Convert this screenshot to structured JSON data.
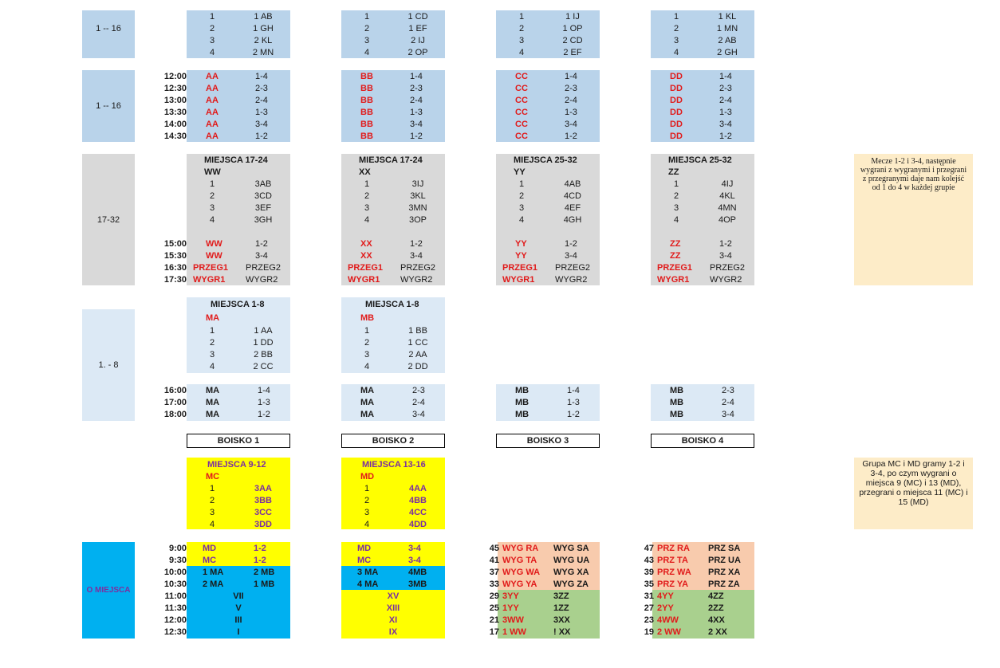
{
  "colors": {
    "blue": "#b9d3ea",
    "gray": "#d9d9d9",
    "lightblue": "#dce9f5",
    "yellow": "#ffff00",
    "cyan": "#00b0f0",
    "salmon": "#f8cbad",
    "green": "#a9d08e",
    "note": "#fdecc8",
    "red": "#e11b1b"
  },
  "sections": {
    "s1_label": "1 -- 16",
    "s2_label": "1 -- 16",
    "s3_label": "17-32",
    "s4_label": "1. -  8",
    "s5_label": "O MIEJSCA"
  },
  "groups1": [
    {
      "rows": [
        [
          "1",
          "1 AB"
        ],
        [
          "2",
          "1 GH"
        ],
        [
          "3",
          "2 KL"
        ],
        [
          "4",
          "2 MN"
        ]
      ]
    },
    {
      "rows": [
        [
          "1",
          "1 CD"
        ],
        [
          "2",
          "1 EF"
        ],
        [
          "3",
          "2 IJ"
        ],
        [
          "4",
          "2 OP"
        ]
      ]
    },
    {
      "rows": [
        [
          "1",
          "1 IJ"
        ],
        [
          "2",
          "1 OP"
        ],
        [
          "3",
          "2 CD"
        ],
        [
          "4",
          "2 EF"
        ]
      ]
    },
    {
      "rows": [
        [
          "1",
          "1 KL"
        ],
        [
          "2",
          "1 MN"
        ],
        [
          "3",
          "2 AB"
        ],
        [
          "4",
          "2 GH"
        ]
      ]
    }
  ],
  "times2": [
    "12:00",
    "12:30",
    "13:00",
    "13:30",
    "14:00",
    "14:30"
  ],
  "games2": [
    {
      "group": "AA",
      "pairs": [
        "1-4",
        "2-3",
        "2-4",
        "1-3",
        "3-4",
        "1-2"
      ]
    },
    {
      "group": "BB",
      "pairs": [
        "1-4",
        "2-3",
        "2-4",
        "1-3",
        "3-4",
        "1-2"
      ]
    },
    {
      "group": "CC",
      "pairs": [
        "1-4",
        "2-3",
        "2-4",
        "1-3",
        "3-4",
        "1-2"
      ]
    },
    {
      "group": "DD",
      "pairs": [
        "1-4",
        "2-3",
        "2-4",
        "1-3",
        "3-4",
        "1-2"
      ]
    }
  ],
  "groups3": [
    {
      "title": "MIEJSCA 17-24",
      "group": "WW",
      "rows": [
        [
          "1",
          "3AB"
        ],
        [
          "2",
          "3CD"
        ],
        [
          "3",
          "3EF"
        ],
        [
          "4",
          "3GH"
        ]
      ],
      "games": [
        [
          "WW",
          "1-2"
        ],
        [
          "WW",
          "3-4"
        ],
        [
          "PRZEG1",
          "PRZEG2"
        ],
        [
          "WYGR1",
          "WYGR2"
        ]
      ]
    },
    {
      "title": "MIEJSCA 17-24",
      "group": "XX",
      "rows": [
        [
          "1",
          "3IJ"
        ],
        [
          "2",
          "3KL"
        ],
        [
          "3",
          "3MN"
        ],
        [
          "4",
          "3OP"
        ]
      ],
      "games": [
        [
          "XX",
          "1-2"
        ],
        [
          "XX",
          "3-4"
        ],
        [
          "PRZEG1",
          "PRZEG2"
        ],
        [
          "WYGR1",
          "WYGR2"
        ]
      ]
    },
    {
      "title": "MIEJSCA 25-32",
      "group": "YY",
      "rows": [
        [
          "1",
          "4AB"
        ],
        [
          "2",
          "4CD"
        ],
        [
          "3",
          "4EF"
        ],
        [
          "4",
          "4GH"
        ]
      ],
      "games": [
        [
          "YY",
          "1-2"
        ],
        [
          "YY",
          "3-4"
        ],
        [
          "PRZEG1",
          "PRZEG2"
        ],
        [
          "WYGR1",
          "WYGR2"
        ]
      ]
    },
    {
      "title": "MIEJSCA 25-32",
      "group": "ZZ",
      "rows": [
        [
          "1",
          "4IJ"
        ],
        [
          "2",
          "4KL"
        ],
        [
          "3",
          "4MN"
        ],
        [
          "4",
          "4OP"
        ]
      ],
      "games": [
        [
          "ZZ",
          "1-2"
        ],
        [
          "ZZ",
          "3-4"
        ],
        [
          "PRZEG1",
          "PRZEG2"
        ],
        [
          "WYGR1",
          "WYGR2"
        ]
      ]
    }
  ],
  "times3": [
    "15:00",
    "15:30",
    "16:30",
    "17:30"
  ],
  "note1": "Mecze 1-2 i 3-4, następnie wygrani z wygranymi i przegrani z przegranymi daje nam kolejść od 1 do 4 w każdej grupie",
  "groups4": [
    {
      "title": "MIEJSCA 1-8",
      "group": "MA",
      "rows": [
        [
          "1",
          "1 AA"
        ],
        [
          "2",
          "1 DD"
        ],
        [
          "3",
          "2 BB"
        ],
        [
          "4",
          "2 CC"
        ]
      ]
    },
    {
      "title": "MIEJSCA 1-8",
      "group": "MB",
      "rows": [
        [
          "1",
          "1 BB"
        ],
        [
          "2",
          "1 CC"
        ],
        [
          "3",
          "2 AA"
        ],
        [
          "4",
          "2 DD"
        ]
      ]
    }
  ],
  "times4": [
    "16:00",
    "17:00",
    "18:00"
  ],
  "games4": [
    [
      [
        "MA",
        "1-4"
      ],
      [
        "MA",
        "1-3"
      ],
      [
        "MA",
        "1-2"
      ]
    ],
    [
      [
        "MA",
        "2-3"
      ],
      [
        "MA",
        "2-4"
      ],
      [
        "MA",
        "3-4"
      ]
    ],
    [
      [
        "MB",
        "1-4"
      ],
      [
        "MB",
        "1-3"
      ],
      [
        "MB",
        "1-2"
      ]
    ],
    [
      [
        "MB",
        "2-3"
      ],
      [
        "MB",
        "2-4"
      ],
      [
        "MB",
        "3-4"
      ]
    ]
  ],
  "boiska": [
    "BOISKO 1",
    "BOISKO 2",
    "BOISKO 3",
    "BOISKO 4"
  ],
  "groups5": [
    {
      "title": "MIEJSCA 9-12",
      "group": "MC",
      "rows": [
        [
          "1",
          "3AA"
        ],
        [
          "2",
          "3BB"
        ],
        [
          "3",
          "3CC"
        ],
        [
          "4",
          "3DD"
        ]
      ]
    },
    {
      "title": "MIEJSCA 13-16",
      "group": "MD",
      "rows": [
        [
          "1",
          "4AA"
        ],
        [
          "2",
          "4BB"
        ],
        [
          "3",
          "4CC"
        ],
        [
          "4",
          "4DD"
        ]
      ]
    }
  ],
  "note2": "Grupa MC i MD gramy 1-2 i 3-4, po czym wygrani o miejsca 9 (MC) i 13 (MD), przegrani o miejsca 11 (MC) i 15 (MD)",
  "times5": [
    "9:00",
    "9:30",
    "10:00",
    "10:30",
    "11:00",
    "11:30",
    "12:00",
    "12:30"
  ],
  "final_b1": [
    [
      "MD",
      "1-2"
    ],
    [
      "MC",
      "1-2"
    ],
    [
      "1 MA",
      "2 MB"
    ],
    [
      "2 MA",
      "1 MB"
    ],
    [
      "VII"
    ],
    [
      "V"
    ],
    [
      "III"
    ],
    [
      "I"
    ]
  ],
  "final_b2": [
    [
      "MD",
      "3-4"
    ],
    [
      "MC",
      "3-4"
    ],
    [
      "3 MA",
      "4MB"
    ],
    [
      "4 MA",
      "3MB"
    ],
    [
      "XV"
    ],
    [
      "XIII"
    ],
    [
      "XI"
    ],
    [
      "IX"
    ]
  ],
  "final_b3": [
    [
      "45",
      "WYG RA",
      "WYG SA"
    ],
    [
      "41",
      "WYG TA",
      "WYG UA"
    ],
    [
      "37",
      "WYG WA",
      "WYG XA"
    ],
    [
      "33",
      "WYG YA",
      "WYG ZA"
    ],
    [
      "29",
      "3YY",
      "3ZZ"
    ],
    [
      "25",
      "1YY",
      "1ZZ"
    ],
    [
      "21",
      "3WW",
      "3XX"
    ],
    [
      "17",
      "1 WW",
      "! XX"
    ]
  ],
  "final_b4": [
    [
      "47",
      "PRZ RA",
      "PRZ SA"
    ],
    [
      "43",
      "PRZ TA",
      "PRZ UA"
    ],
    [
      "39",
      "PRZ WA",
      "PRZ XA"
    ],
    [
      "35",
      "PRZ YA",
      "PRZ ZA"
    ],
    [
      "31",
      "4YY",
      "4ZZ"
    ],
    [
      "27",
      "2YY",
      "2ZZ"
    ],
    [
      "23",
      "4WW",
      "4XX"
    ],
    [
      "19",
      "2 WW",
      "2 XX"
    ]
  ]
}
